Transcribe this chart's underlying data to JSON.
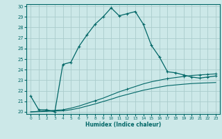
{
  "xlabel": "Humidex (Indice chaleur)",
  "bg_color": "#cce8e8",
  "grid_color": "#aacccc",
  "line_color": "#006666",
  "xlim": [
    -0.5,
    23.5
  ],
  "ylim": [
    19.8,
    30.2
  ],
  "yticks": [
    20,
    21,
    22,
    23,
    24,
    25,
    26,
    27,
    28,
    29,
    30
  ],
  "xticks": [
    0,
    1,
    2,
    3,
    4,
    5,
    6,
    7,
    8,
    9,
    10,
    11,
    12,
    13,
    14,
    15,
    16,
    17,
    18,
    19,
    20,
    21,
    22,
    23
  ],
  "curve1_x": [
    0,
    1,
    2,
    3,
    4,
    5,
    6,
    7,
    8,
    9,
    10,
    11,
    12,
    13,
    14,
    15,
    16,
    17,
    18,
    19,
    20,
    21,
    22,
    23
  ],
  "curve1_y": [
    21.5,
    20.2,
    20.2,
    20.0,
    24.5,
    24.7,
    26.2,
    27.3,
    28.3,
    29.0,
    29.85,
    29.1,
    29.3,
    29.5,
    28.3,
    26.3,
    25.2,
    23.8,
    23.7,
    23.5,
    23.3,
    23.2,
    23.3,
    23.4
  ],
  "curve2_x": [
    0,
    1,
    2,
    3,
    4,
    5,
    6,
    7,
    8,
    9,
    10,
    11,
    12,
    13,
    14,
    15,
    16,
    17,
    18,
    19,
    20,
    21,
    22,
    23
  ],
  "curve2_y": [
    20.0,
    20.05,
    20.1,
    20.15,
    20.2,
    20.35,
    20.55,
    20.8,
    21.05,
    21.3,
    21.6,
    21.9,
    22.15,
    22.4,
    22.65,
    22.85,
    23.0,
    23.15,
    23.25,
    23.35,
    23.45,
    23.5,
    23.55,
    23.6
  ],
  "curve3_x": [
    0,
    1,
    2,
    3,
    4,
    5,
    6,
    7,
    8,
    9,
    10,
    11,
    12,
    13,
    14,
    15,
    16,
    17,
    18,
    19,
    20,
    21,
    22,
    23
  ],
  "curve3_y": [
    20.0,
    20.02,
    20.05,
    20.08,
    20.1,
    20.2,
    20.35,
    20.55,
    20.75,
    20.98,
    21.2,
    21.45,
    21.65,
    21.85,
    22.05,
    22.2,
    22.35,
    22.48,
    22.55,
    22.62,
    22.68,
    22.72,
    22.75,
    22.78
  ]
}
